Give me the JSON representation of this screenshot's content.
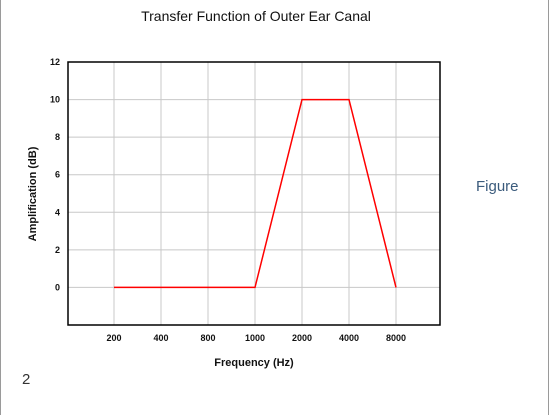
{
  "slide": {
    "side_label": "Figure",
    "page_number": "2"
  },
  "chart_data": {
    "type": "line",
    "title": "Transfer Function of Outer Ear Canal",
    "xlabel": "Frequency (Hz)",
    "ylabel": "Amplification (dB)",
    "categories": [
      "200",
      "400",
      "800",
      "1000",
      "2000",
      "4000",
      "8000"
    ],
    "y_ticks": [
      0,
      2,
      4,
      6,
      8,
      10,
      12
    ],
    "ylim": [
      -2,
      12
    ],
    "grid": true,
    "series": [
      {
        "color": "#ff0000",
        "values": [
          0,
          0,
          0,
          0,
          10,
          10,
          0
        ]
      }
    ]
  }
}
